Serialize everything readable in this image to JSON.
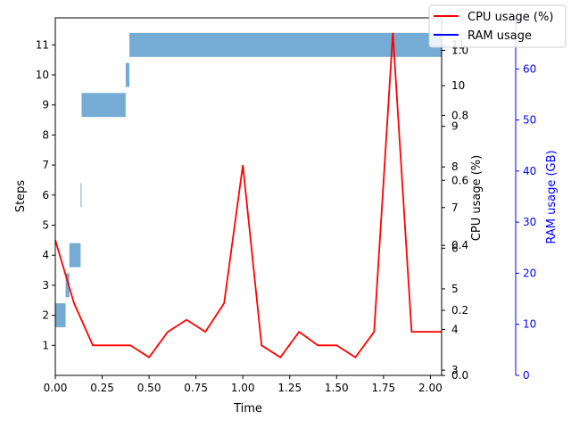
{
  "chart_data": {
    "type": "bar+line",
    "xlabel": "Time",
    "ylabel_left": "Steps",
    "ylabel_mid": "CPU usage (%)",
    "ylabel_right": "RAM usage (GB)",
    "xlim": [
      0,
      2.06
    ],
    "x_ticks": [
      0.0,
      0.25,
      0.5,
      0.75,
      1.0,
      1.25,
      1.5,
      1.75,
      2.0
    ],
    "x_tick_labels": [
      "0.00",
      "0.25",
      "0.50",
      "0.75",
      "1.00",
      "1.25",
      "1.50",
      "1.75",
      "2.00"
    ],
    "steps_ylim": [
      0,
      11.9
    ],
    "steps_ticks": [
      1,
      2,
      3,
      4,
      5,
      6,
      7,
      8,
      9,
      10,
      11
    ],
    "steps_tick_labels": [
      "1",
      "2",
      "3",
      "4",
      "5",
      "6",
      "7",
      "8",
      "9",
      "10",
      "11"
    ],
    "step_bars": [
      {
        "step": 2,
        "start": 0.0,
        "end": 0.055
      },
      {
        "step": 3,
        "start": 0.055,
        "end": 0.075
      },
      {
        "step": 4,
        "start": 0.075,
        "end": 0.135
      },
      {
        "step": 6,
        "start": 0.135,
        "end": 0.14
      },
      {
        "step": 9,
        "start": 0.14,
        "end": 0.375
      },
      {
        "step": 10,
        "start": 0.375,
        "end": 0.395
      },
      {
        "step": 11,
        "start": 0.395,
        "end": 2.06
      }
    ],
    "cpu_ylim": [
      0,
      1.1
    ],
    "cpu_ticks": [
      0.0,
      0.2,
      0.4,
      0.6,
      0.8,
      1.0
    ],
    "cpu_tick_labels": [
      "0.0",
      "0.2",
      "0.4",
      "0.6",
      "0.8",
      "1.0"
    ],
    "mid_steps_ticks": [
      3,
      4,
      5,
      6,
      7,
      8,
      9,
      10,
      11
    ],
    "mid_steps_tick_labels": [
      "3",
      "4",
      "5",
      "6",
      "7",
      "8",
      "9",
      "10",
      "11"
    ],
    "mid_steps_range": [
      2.87,
      11.45
    ],
    "ram_ylim": [
      0,
      70
    ],
    "ram_ticks": [
      0,
      10,
      20,
      30,
      40,
      50,
      60
    ],
    "ram_tick_labels": [
      "0",
      "10",
      "20",
      "30",
      "40",
      "50",
      "60"
    ],
    "series": [
      {
        "name": "CPU usage (%)",
        "color": "#ff0000",
        "x": [
          0.0,
          0.1,
          0.2,
          0.3,
          0.4,
          0.5,
          0.6,
          0.7,
          0.8,
          0.9,
          1.0,
          1.1,
          1.2,
          1.3,
          1.4,
          1.5,
          1.6,
          1.7,
          1.8,
          1.9,
          2.0,
          2.06
        ],
        "values": [
          4.5,
          2.4,
          1.0,
          1.0,
          1.0,
          0.6,
          1.45,
          1.85,
          1.45,
          2.4,
          7.0,
          1.0,
          0.6,
          1.45,
          1.0,
          1.0,
          0.6,
          1.45,
          11.4,
          1.45,
          1.45,
          1.45
        ],
        "value_axis": "steps"
      },
      {
        "name": "RAM usage",
        "color": "#0000ff",
        "x": [],
        "values": []
      }
    ],
    "bar_color": "#75acd3",
    "legend": {
      "placement": "top-right"
    },
    "grid": false
  },
  "colors": {
    "cpu": "#ff0000",
    "ram": "#0000ff",
    "bar": "#75acd3",
    "axis": "#000000",
    "ram_axis": "#0000ff"
  }
}
